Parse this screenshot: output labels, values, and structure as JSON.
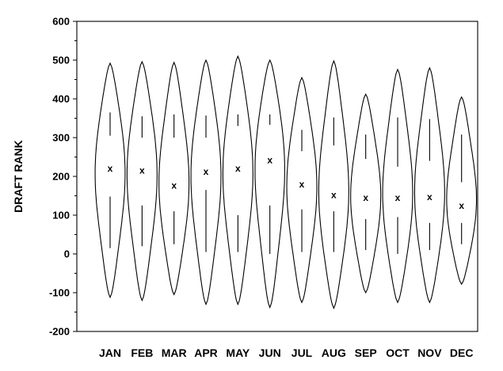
{
  "chart_data": {
    "type": "violin",
    "ylabel": "DRAFT RANK",
    "xlabel": "",
    "ylim": [
      -200,
      600
    ],
    "yticks": [
      -200,
      -100,
      0,
      100,
      200,
      300,
      400,
      500,
      600
    ],
    "mean_marker": "x",
    "categories": [
      "JAN",
      "FEB",
      "MAR",
      "APR",
      "MAY",
      "JUN",
      "JUL",
      "AUG",
      "SEP",
      "OCT",
      "NOV",
      "DEC"
    ],
    "mean": [
      220,
      215,
      177,
      212,
      220,
      242,
      180,
      152,
      145,
      145,
      147,
      125
    ],
    "min": [
      -112,
      -120,
      -105,
      -130,
      -130,
      -138,
      -125,
      -140,
      -100,
      -125,
      -125,
      -78
    ],
    "max": [
      492,
      496,
      494,
      500,
      510,
      500,
      455,
      498,
      412,
      476,
      480,
      405
    ],
    "upper_whisker": [
      [
        365,
        305
      ],
      [
        355,
        300
      ],
      [
        360,
        300
      ],
      [
        357,
        300
      ],
      [
        360,
        330
      ],
      [
        360,
        333
      ],
      [
        320,
        265
      ],
      [
        352,
        280
      ],
      [
        308,
        245
      ],
      [
        352,
        225
      ],
      [
        348,
        240
      ],
      [
        308,
        185
      ]
    ],
    "lower_whisker": [
      [
        148,
        15
      ],
      [
        125,
        20
      ],
      [
        110,
        25
      ],
      [
        165,
        5
      ],
      [
        100,
        5
      ],
      [
        125,
        0
      ],
      [
        115,
        5
      ],
      [
        110,
        5
      ],
      [
        90,
        10
      ],
      [
        95,
        0
      ],
      [
        80,
        10
      ],
      [
        80,
        25
      ]
    ]
  }
}
